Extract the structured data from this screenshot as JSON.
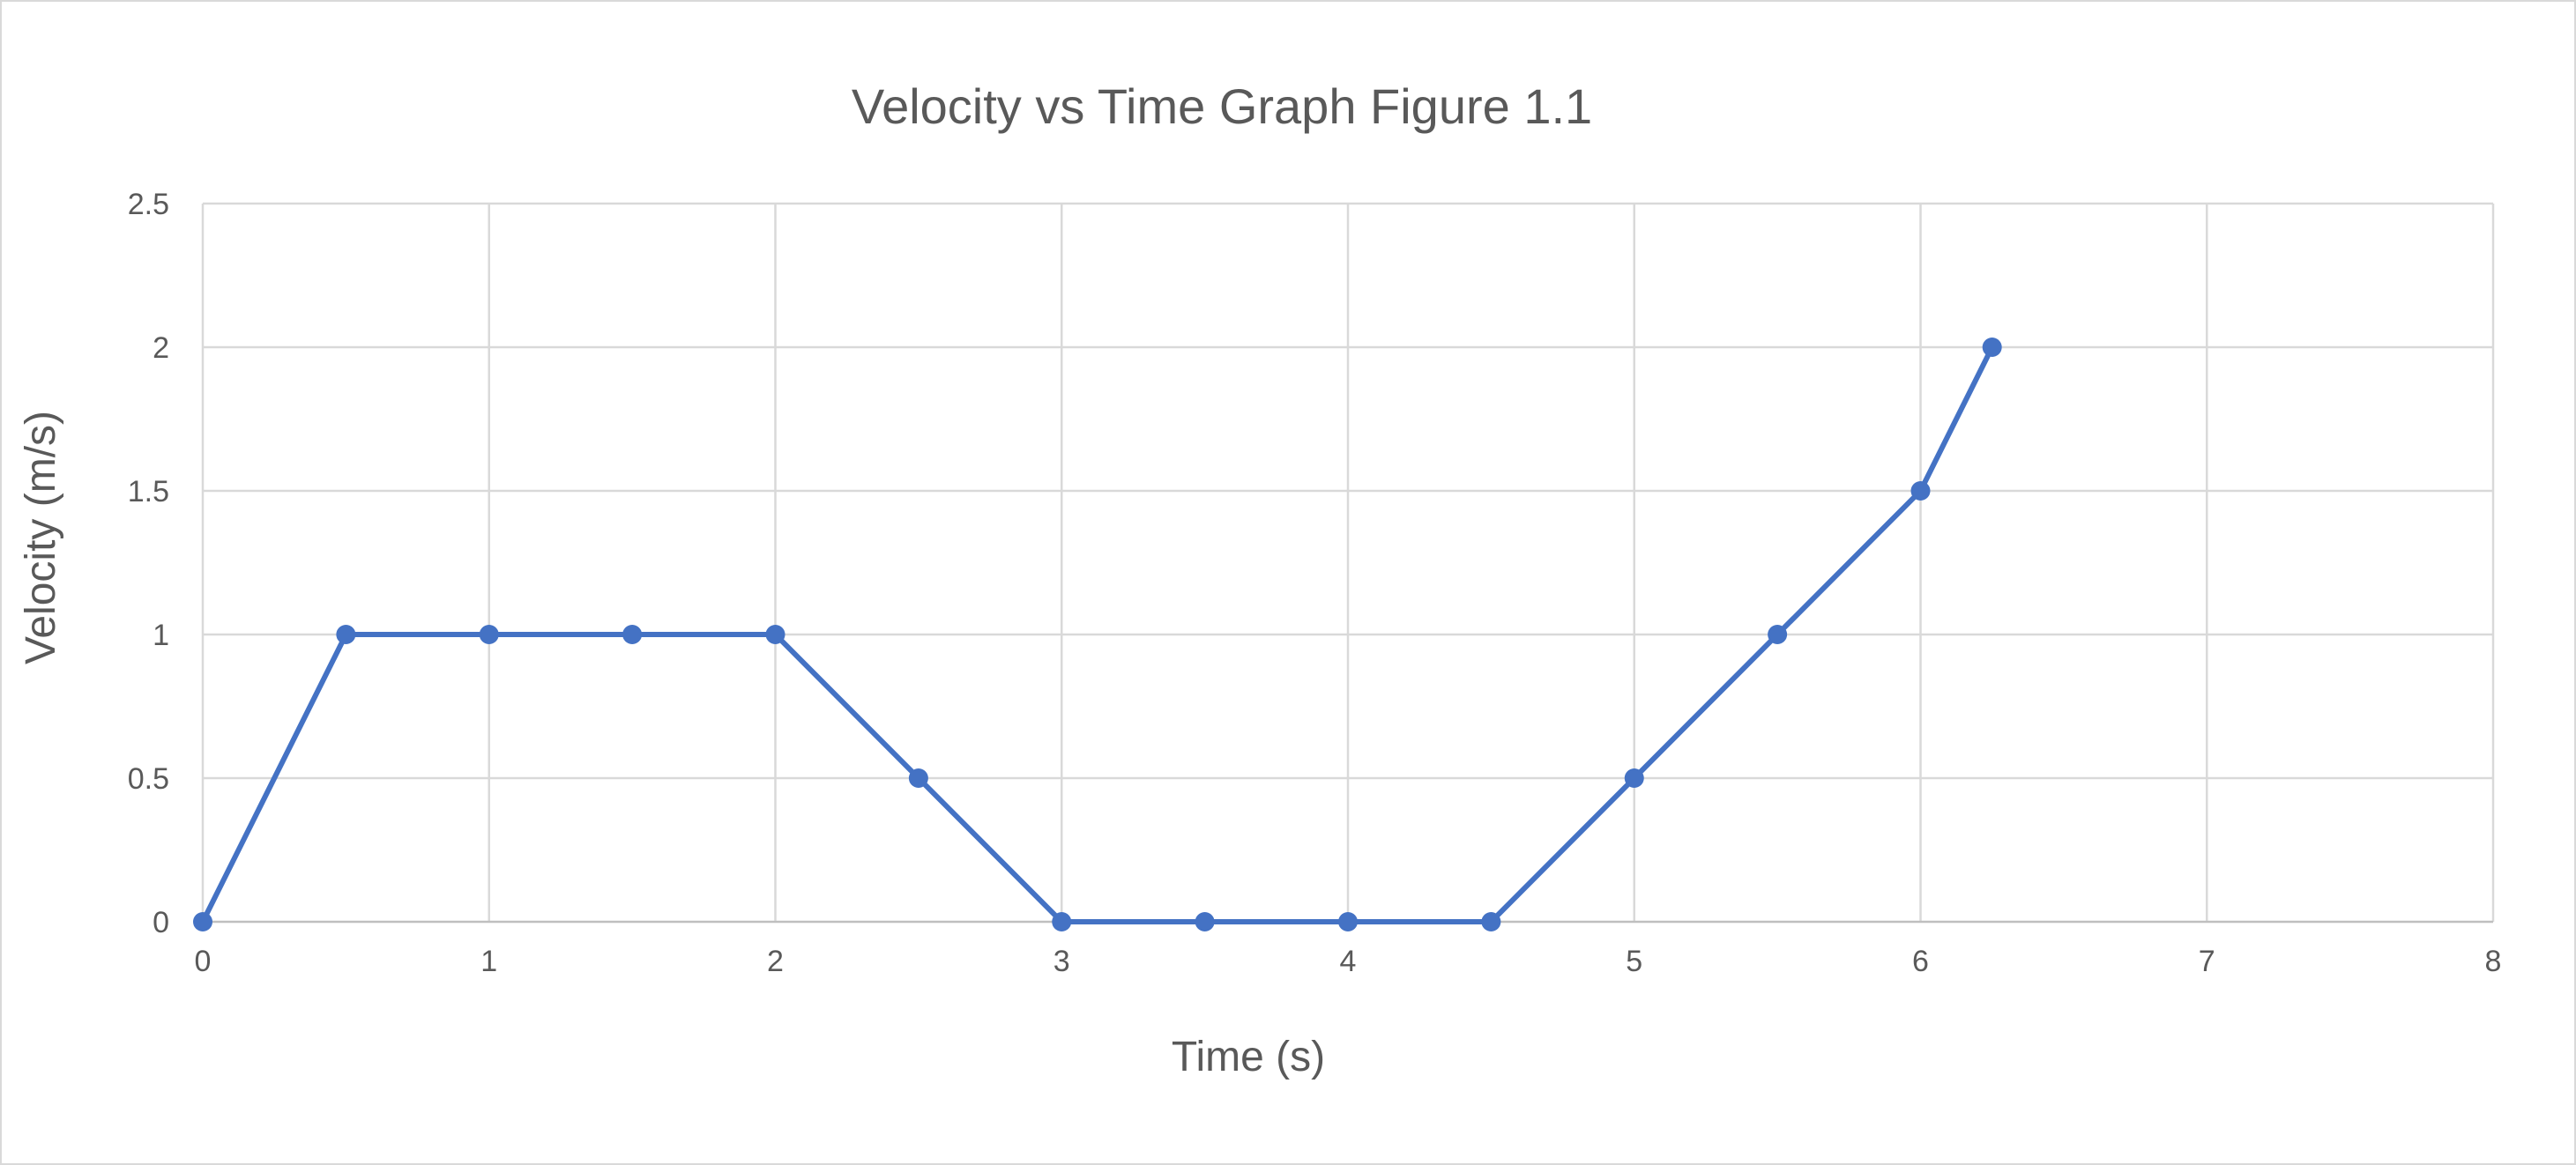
{
  "chart_data": {
    "type": "line",
    "title": "Velocity vs Time Graph Figure 1.1",
    "xlabel": "Time (s)",
    "ylabel": "Velocity (m/s)",
    "xlim": [
      0,
      8
    ],
    "ylim": [
      0,
      2.5
    ],
    "x_ticks": [
      "0",
      "1",
      "2",
      "3",
      "4",
      "5",
      "6",
      "7",
      "8"
    ],
    "y_ticks": [
      "0",
      "0.5",
      "1",
      "1.5",
      "2",
      "2.5"
    ],
    "grid": true,
    "legend": "none",
    "color": "#4472C4",
    "series": [
      {
        "x": [
          0,
          0.5,
          1,
          1.5,
          2,
          2.5,
          3,
          3.5,
          4,
          4.5,
          5,
          5.5,
          6,
          6.25
        ],
        "y": [
          0,
          1,
          1,
          1,
          1,
          0.5,
          0,
          0,
          0,
          0,
          0.5,
          1,
          1.5,
          2
        ]
      }
    ]
  }
}
